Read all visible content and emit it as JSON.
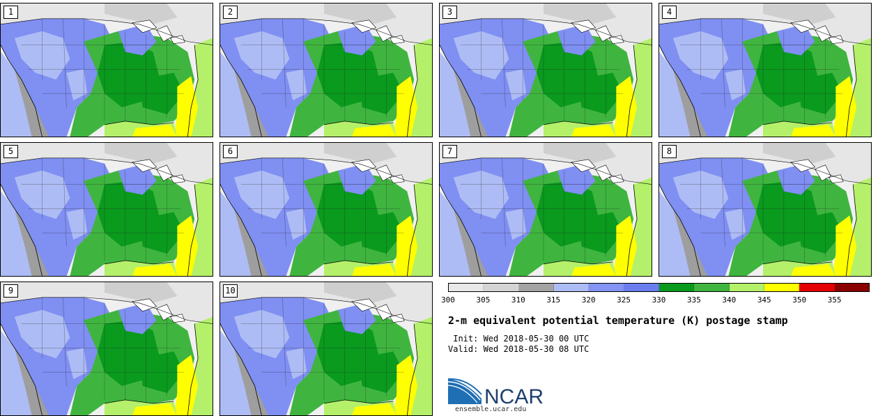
{
  "panels": [
    {
      "label": "1"
    },
    {
      "label": "2"
    },
    {
      "label": "3"
    },
    {
      "label": "4"
    },
    {
      "label": "5"
    },
    {
      "label": "6"
    },
    {
      "label": "7"
    },
    {
      "label": "8"
    },
    {
      "label": "9"
    },
    {
      "label": "10"
    }
  ],
  "colorbar": {
    "colors": [
      "#e8e8e8",
      "#d4d4d4",
      "#a3a3a3",
      "#aebcf5",
      "#8394f5",
      "#6a7ef0",
      "#0a9a1e",
      "#3fb53f",
      "#b4f06a",
      "#ffff00",
      "#e40000",
      "#8b0000"
    ],
    "ticks": [
      "300",
      "305",
      "310",
      "315",
      "320",
      "325",
      "330",
      "335",
      "340",
      "345",
      "350",
      "355"
    ]
  },
  "title": "2-m equivalent potential temperature (K) postage stamp",
  "init": " Init: Wed 2018-05-30 00 UTC",
  "valid": "Valid: Wed 2018-05-30 08 UTC",
  "logo": {
    "text": "NCAR",
    "url": "ensemble.ucar.edu"
  }
}
